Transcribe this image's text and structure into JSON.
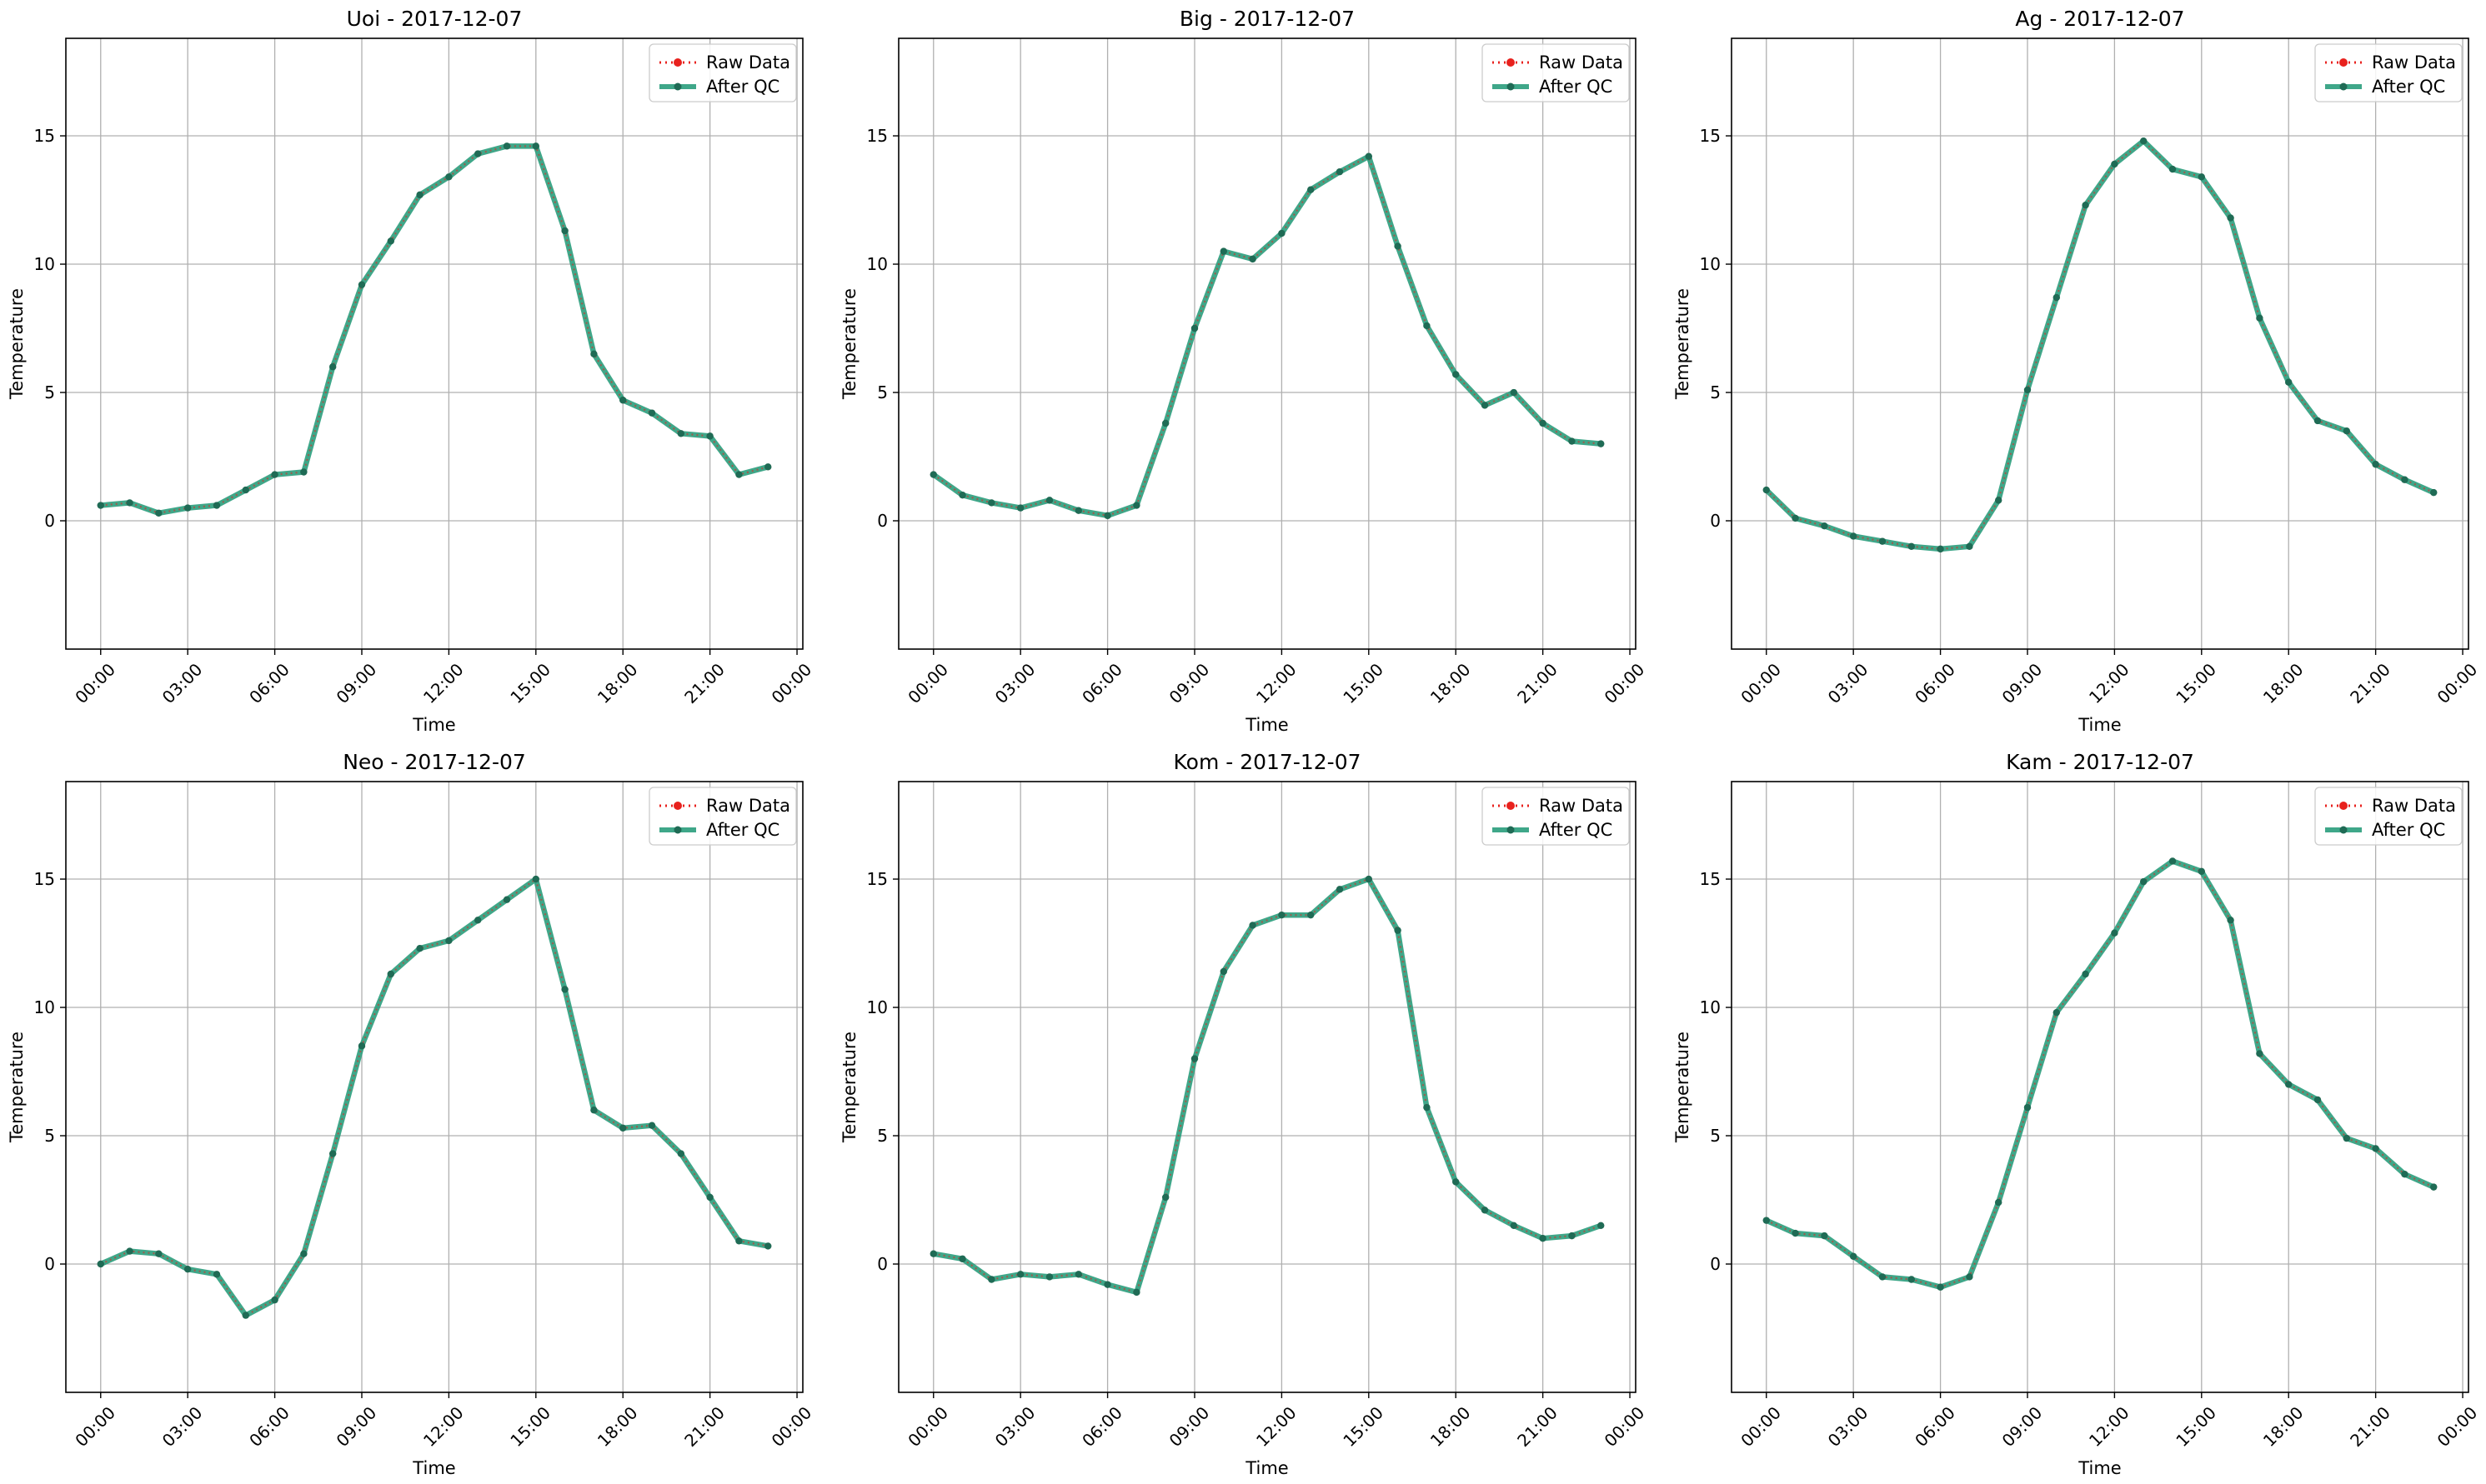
{
  "figure": {
    "colors": {
      "raw": "#e8211d",
      "qc_line": "#2a9d7c",
      "qc_marker": "#1f6b55",
      "grid": "#b0b0b0",
      "frame": "#000000",
      "legend_border": "#cccccc"
    },
    "layout": "2 rows x 3 columns"
  },
  "chart_data": [
    {
      "type": "line",
      "title": "Uoi - 2017-12-07",
      "xlabel": "Time",
      "ylabel": "Temperature",
      "x_ticks": [
        "00:00",
        "03:00",
        "06:00",
        "09:00",
        "12:00",
        "15:00",
        "18:00",
        "21:00",
        "00:00"
      ],
      "y_ticks": [
        "0",
        "5",
        "10",
        "15"
      ],
      "ylim": [
        -5,
        18.8
      ],
      "xlim_hours": [
        -1.2,
        24.2
      ],
      "grid": true,
      "legend": {
        "position": "top-right",
        "entries": [
          "Raw Data",
          "After QC"
        ]
      },
      "hours": [
        0,
        1,
        2,
        3,
        4,
        5,
        6,
        7,
        8,
        9,
        10,
        11,
        12,
        13,
        14,
        15,
        16,
        17,
        18,
        19,
        20,
        21,
        22,
        23
      ],
      "series": [
        {
          "name": "Raw Data",
          "style": "dotted red with markers",
          "values": [
            0.6,
            0.7,
            0.3,
            0.5,
            0.6,
            1.2,
            1.8,
            1.9,
            6.0,
            9.2,
            10.9,
            12.7,
            13.4,
            14.3,
            14.6,
            14.6,
            11.3,
            6.5,
            4.7,
            4.2,
            3.4,
            3.3,
            1.8,
            2.1
          ]
        },
        {
          "name": "After QC",
          "style": "solid green with markers",
          "values": [
            0.6,
            0.7,
            0.3,
            0.5,
            0.6,
            1.2,
            1.8,
            1.9,
            6.0,
            9.2,
            10.9,
            12.7,
            13.4,
            14.3,
            14.6,
            14.6,
            11.3,
            6.5,
            4.7,
            4.2,
            3.4,
            3.3,
            1.8,
            2.1
          ]
        }
      ]
    },
    {
      "type": "line",
      "title": "Big - 2017-12-07",
      "xlabel": "Time",
      "ylabel": "Temperature",
      "x_ticks": [
        "00:00",
        "03:00",
        "06:00",
        "09:00",
        "12:00",
        "15:00",
        "18:00",
        "21:00",
        "00:00"
      ],
      "y_ticks": [
        "0",
        "5",
        "10",
        "15"
      ],
      "ylim": [
        -5,
        18.8
      ],
      "xlim_hours": [
        -1.2,
        24.2
      ],
      "grid": true,
      "legend": {
        "position": "top-right",
        "entries": [
          "Raw Data",
          "After QC"
        ]
      },
      "hours": [
        0,
        1,
        2,
        3,
        4,
        5,
        6,
        7,
        8,
        9,
        10,
        11,
        12,
        13,
        14,
        15,
        16,
        17,
        18,
        19,
        20,
        21,
        22,
        23
      ],
      "series": [
        {
          "name": "Raw Data",
          "style": "dotted red with markers",
          "values": [
            1.8,
            1.0,
            0.7,
            0.5,
            0.8,
            0.4,
            0.2,
            0.6,
            3.8,
            7.5,
            10.5,
            10.2,
            11.2,
            12.9,
            13.6,
            14.2,
            10.7,
            7.6,
            5.7,
            4.5,
            5.0,
            3.8,
            3.1,
            3.0
          ]
        },
        {
          "name": "After QC",
          "style": "solid green with markers",
          "values": [
            1.8,
            1.0,
            0.7,
            0.5,
            0.8,
            0.4,
            0.2,
            0.6,
            3.8,
            7.5,
            10.5,
            10.2,
            11.2,
            12.9,
            13.6,
            14.2,
            10.7,
            7.6,
            5.7,
            4.5,
            5.0,
            3.8,
            3.1,
            3.0
          ]
        }
      ]
    },
    {
      "type": "line",
      "title": "Ag - 2017-12-07",
      "xlabel": "Time",
      "ylabel": "Temperature",
      "x_ticks": [
        "00:00",
        "03:00",
        "06:00",
        "09:00",
        "12:00",
        "15:00",
        "18:00",
        "21:00",
        "00:00"
      ],
      "y_ticks": [
        "0",
        "5",
        "10",
        "15"
      ],
      "ylim": [
        -5,
        18.8
      ],
      "xlim_hours": [
        -1.2,
        24.2
      ],
      "grid": true,
      "legend": {
        "position": "top-right",
        "entries": [
          "Raw Data",
          "After QC"
        ]
      },
      "hours": [
        0,
        1,
        2,
        3,
        4,
        5,
        6,
        7,
        8,
        9,
        10,
        11,
        12,
        13,
        14,
        15,
        16,
        17,
        18,
        19,
        20,
        21,
        22,
        23
      ],
      "series": [
        {
          "name": "Raw Data",
          "style": "dotted red with markers",
          "values": [
            1.2,
            0.1,
            -0.2,
            -0.6,
            -0.8,
            -1.0,
            -1.1,
            -1.0,
            0.8,
            5.1,
            8.7,
            12.3,
            13.9,
            14.8,
            13.7,
            13.4,
            11.8,
            7.9,
            5.4,
            3.9,
            3.5,
            2.2,
            1.6,
            1.1
          ]
        },
        {
          "name": "After QC",
          "style": "solid green with markers",
          "values": [
            1.2,
            0.1,
            -0.2,
            -0.6,
            -0.8,
            -1.0,
            -1.1,
            -1.0,
            0.8,
            5.1,
            8.7,
            12.3,
            13.9,
            14.8,
            13.7,
            13.4,
            11.8,
            7.9,
            5.4,
            3.9,
            3.5,
            2.2,
            1.6,
            1.1
          ]
        }
      ]
    },
    {
      "type": "line",
      "title": "Neo - 2017-12-07",
      "xlabel": "Time",
      "ylabel": "Temperature",
      "x_ticks": [
        "00:00",
        "03:00",
        "06:00",
        "09:00",
        "12:00",
        "15:00",
        "18:00",
        "21:00",
        "00:00"
      ],
      "y_ticks": [
        "0",
        "5",
        "10",
        "15"
      ],
      "ylim": [
        -5,
        18.8
      ],
      "xlim_hours": [
        -1.2,
        24.2
      ],
      "grid": true,
      "legend": {
        "position": "top-right",
        "entries": [
          "Raw Data",
          "After QC"
        ]
      },
      "hours": [
        0,
        1,
        2,
        3,
        4,
        5,
        6,
        7,
        8,
        9,
        10,
        11,
        12,
        13,
        14,
        15,
        16,
        17,
        18,
        19,
        20,
        21,
        22,
        23
      ],
      "series": [
        {
          "name": "Raw Data",
          "style": "dotted red with markers",
          "values": [
            0.0,
            0.5,
            0.4,
            -0.2,
            -0.4,
            -2.0,
            -1.4,
            0.4,
            4.3,
            8.5,
            11.3,
            12.3,
            12.6,
            13.4,
            14.2,
            15.0,
            10.7,
            6.0,
            5.3,
            5.4,
            4.3,
            2.6,
            0.9,
            0.7
          ]
        },
        {
          "name": "After QC",
          "style": "solid green with markers",
          "values": [
            0.0,
            0.5,
            0.4,
            -0.2,
            -0.4,
            -2.0,
            -1.4,
            0.4,
            4.3,
            8.5,
            11.3,
            12.3,
            12.6,
            13.4,
            14.2,
            15.0,
            10.7,
            6.0,
            5.3,
            5.4,
            4.3,
            2.6,
            0.9,
            0.7
          ]
        }
      ]
    },
    {
      "type": "line",
      "title": "Kom - 2017-12-07",
      "xlabel": "Time",
      "ylabel": "Temperature",
      "x_ticks": [
        "00:00",
        "03:00",
        "06:00",
        "09:00",
        "12:00",
        "15:00",
        "18:00",
        "21:00",
        "00:00"
      ],
      "y_ticks": [
        "0",
        "5",
        "10",
        "15"
      ],
      "ylim": [
        -5,
        18.8
      ],
      "xlim_hours": [
        -1.2,
        24.2
      ],
      "grid": true,
      "legend": {
        "position": "top-right",
        "entries": [
          "Raw Data",
          "After QC"
        ]
      },
      "hours": [
        0,
        1,
        2,
        3,
        4,
        5,
        6,
        7,
        8,
        9,
        10,
        11,
        12,
        13,
        14,
        15,
        16,
        17,
        18,
        19,
        20,
        21,
        22,
        23
      ],
      "series": [
        {
          "name": "Raw Data",
          "style": "dotted red with markers",
          "values": [
            0.4,
            0.2,
            -0.6,
            -0.4,
            -0.5,
            -0.4,
            -0.8,
            -1.1,
            2.6,
            8.0,
            11.4,
            13.2,
            13.6,
            13.6,
            14.6,
            15.0,
            13.0,
            6.1,
            3.2,
            2.1,
            1.5,
            1.0,
            1.1,
            1.5
          ]
        },
        {
          "name": "After QC",
          "style": "solid green with markers",
          "values": [
            0.4,
            0.2,
            -0.6,
            -0.4,
            -0.5,
            -0.4,
            -0.8,
            -1.1,
            2.6,
            8.0,
            11.4,
            13.2,
            13.6,
            13.6,
            14.6,
            15.0,
            13.0,
            6.1,
            3.2,
            2.1,
            1.5,
            1.0,
            1.1,
            1.5
          ]
        }
      ]
    },
    {
      "type": "line",
      "title": "Kam - 2017-12-07",
      "xlabel": "Time",
      "ylabel": "Temperature",
      "x_ticks": [
        "00:00",
        "03:00",
        "06:00",
        "09:00",
        "12:00",
        "15:00",
        "18:00",
        "21:00",
        "00:00"
      ],
      "y_ticks": [
        "0",
        "5",
        "10",
        "15"
      ],
      "ylim": [
        -5,
        18.8
      ],
      "xlim_hours": [
        -1.2,
        24.2
      ],
      "grid": true,
      "legend": {
        "position": "top-right",
        "entries": [
          "Raw Data",
          "After QC"
        ]
      },
      "hours": [
        0,
        1,
        2,
        3,
        4,
        5,
        6,
        7,
        8,
        9,
        10,
        11,
        12,
        13,
        14,
        15,
        16,
        17,
        18,
        19,
        20,
        21,
        22,
        23
      ],
      "series": [
        {
          "name": "Raw Data",
          "style": "dotted red with markers",
          "values": [
            1.7,
            1.2,
            1.1,
            0.3,
            -0.5,
            -0.6,
            -0.9,
            -0.5,
            2.4,
            6.1,
            9.8,
            11.3,
            12.9,
            14.9,
            15.7,
            15.3,
            13.4,
            8.2,
            7.0,
            6.4,
            4.9,
            4.5,
            3.5,
            3.0
          ]
        },
        {
          "name": "After QC",
          "style": "solid green with markers",
          "values": [
            1.7,
            1.2,
            1.1,
            0.3,
            -0.5,
            -0.6,
            -0.9,
            -0.5,
            2.4,
            6.1,
            9.8,
            11.3,
            12.9,
            14.9,
            15.7,
            15.3,
            13.4,
            8.2,
            7.0,
            6.4,
            4.9,
            4.5,
            3.5,
            3.0
          ]
        }
      ]
    }
  ]
}
